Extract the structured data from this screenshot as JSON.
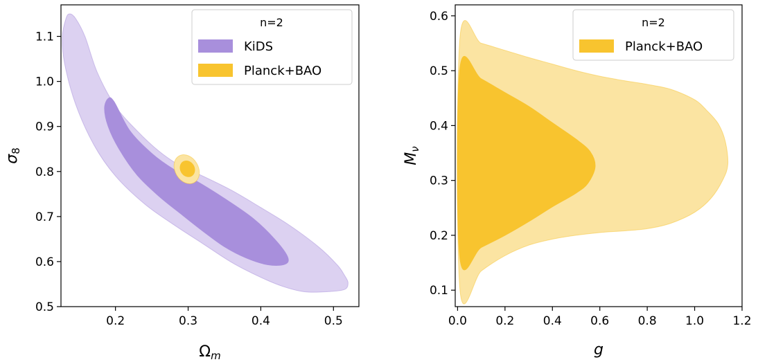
{
  "chart_data": [
    {
      "type": "contour",
      "legend_title": "n=2",
      "xlabel": "Ω",
      "xlabel_sub": "m",
      "ylabel": "σ",
      "ylabel_sub": "8",
      "xlim": [
        0.125,
        0.535
      ],
      "ylim": [
        0.5,
        1.17
      ],
      "xticks": [
        0.2,
        0.3,
        0.4,
        0.5
      ],
      "xtick_labels": [
        "0.2",
        "0.3",
        "0.4",
        "0.5"
      ],
      "yticks": [
        0.5,
        0.6,
        0.7,
        0.8,
        0.9,
        1.0,
        1.1
      ],
      "ytick_labels": [
        "0.5",
        "0.6",
        "0.7",
        "0.8",
        "0.9",
        "1.0",
        "1.1"
      ],
      "legend": [
        "KiDS",
        "Planck+BAO"
      ],
      "legend_location": "upper right",
      "series": [
        {
          "name": "KiDS",
          "color": "#a88fdc",
          "outer_color": "#dcd1f1",
          "outer_contour": [
            [
              0.127,
              1.1
            ],
            [
              0.132,
              1.14
            ],
            [
              0.137,
              1.15
            ],
            [
              0.145,
              1.14
            ],
            [
              0.158,
              1.1
            ],
            [
              0.175,
              1.02
            ],
            [
              0.2,
              0.945
            ],
            [
              0.23,
              0.89
            ],
            [
              0.26,
              0.845
            ],
            [
              0.29,
              0.812
            ],
            [
              0.32,
              0.79
            ],
            [
              0.36,
              0.758
            ],
            [
              0.4,
              0.72
            ],
            [
              0.44,
              0.68
            ],
            [
              0.48,
              0.632
            ],
            [
              0.505,
              0.593
            ],
            [
              0.515,
              0.57
            ],
            [
              0.52,
              0.553
            ],
            [
              0.515,
              0.538
            ],
            [
              0.49,
              0.533
            ],
            [
              0.46,
              0.533
            ],
            [
              0.43,
              0.545
            ],
            [
              0.4,
              0.565
            ],
            [
              0.36,
              0.598
            ],
            [
              0.32,
              0.64
            ],
            [
              0.28,
              0.682
            ],
            [
              0.24,
              0.728
            ],
            [
              0.2,
              0.79
            ],
            [
              0.17,
              0.86
            ],
            [
              0.145,
              0.95
            ],
            [
              0.13,
              1.04
            ]
          ],
          "inner_contour": [
            [
              0.185,
              0.94
            ],
            [
              0.19,
              0.962
            ],
            [
              0.198,
              0.955
            ],
            [
              0.22,
              0.89
            ],
            [
              0.25,
              0.84
            ],
            [
              0.28,
              0.805
            ],
            [
              0.31,
              0.78
            ],
            [
              0.35,
              0.74
            ],
            [
              0.39,
              0.695
            ],
            [
              0.42,
              0.648
            ],
            [
              0.437,
              0.61
            ],
            [
              0.433,
              0.594
            ],
            [
              0.41,
              0.593
            ],
            [
              0.38,
              0.608
            ],
            [
              0.35,
              0.633
            ],
            [
              0.32,
              0.668
            ],
            [
              0.29,
              0.706
            ],
            [
              0.26,
              0.745
            ],
            [
              0.23,
              0.792
            ],
            [
              0.205,
              0.85
            ],
            [
              0.19,
              0.9
            ]
          ]
        },
        {
          "name": "Planck+BAO",
          "color": "#f8c42f",
          "outer_color": "#fbe4a2",
          "ellipse_1sigma": {
            "cx": 0.299,
            "cy": 0.806,
            "rx": 0.01,
            "ry": 0.019
          },
          "ellipse_2sigma": {
            "cx": 0.298,
            "cy": 0.805,
            "rx": 0.016,
            "ry": 0.034
          }
        }
      ]
    },
    {
      "type": "contour",
      "legend_title": "n=2",
      "xlabel": "g",
      "ylabel": "M",
      "ylabel_sub": "ν",
      "xlim": [
        -0.01,
        1.2
      ],
      "ylim": [
        0.07,
        0.62
      ],
      "xticks": [
        0.0,
        0.2,
        0.4,
        0.6,
        0.8,
        1.0,
        1.2
      ],
      "xtick_labels": [
        "0.0",
        "0.2",
        "0.4",
        "0.6",
        "0.8",
        "1.0",
        "1.2"
      ],
      "yticks": [
        0.1,
        0.2,
        0.3,
        0.4,
        0.5,
        0.6
      ],
      "ytick_labels": [
        "0.1",
        "0.2",
        "0.3",
        "0.4",
        "0.5",
        "0.6"
      ],
      "legend": [
        "Planck+BAO"
      ],
      "legend_location": "upper right",
      "series": [
        {
          "name": "Planck+BAO",
          "color": "#f8c42f",
          "outer_color": "#fbe4a2",
          "outer_contour": [
            [
              0.01,
              0.101
            ],
            [
              0.1,
              0.135
            ],
            [
              0.2,
              0.163
            ],
            [
              0.3,
              0.182
            ],
            [
              0.4,
              0.193
            ],
            [
              0.5,
              0.2
            ],
            [
              0.6,
              0.205
            ],
            [
              0.7,
              0.208
            ],
            [
              0.8,
              0.212
            ],
            [
              0.9,
              0.222
            ],
            [
              1.0,
              0.242
            ],
            [
              1.07,
              0.268
            ],
            [
              1.12,
              0.302
            ],
            [
              1.14,
              0.33
            ],
            [
              1.13,
              0.37
            ],
            [
              1.1,
              0.403
            ],
            [
              1.05,
              0.428
            ],
            [
              1.0,
              0.447
            ],
            [
              0.9,
              0.466
            ],
            [
              0.8,
              0.475
            ],
            [
              0.7,
              0.482
            ],
            [
              0.6,
              0.49
            ],
            [
              0.5,
              0.5
            ],
            [
              0.4,
              0.512
            ],
            [
              0.3,
              0.524
            ],
            [
              0.2,
              0.537
            ],
            [
              0.1,
              0.55
            ],
            [
              0.01,
              0.56
            ]
          ],
          "inner_contour": [
            [
              0.01,
              0.158
            ],
            [
              0.1,
              0.178
            ],
            [
              0.2,
              0.2
            ],
            [
              0.3,
              0.225
            ],
            [
              0.4,
              0.252
            ],
            [
              0.5,
              0.277
            ],
            [
              0.55,
              0.295
            ],
            [
              0.58,
              0.325
            ],
            [
              0.56,
              0.352
            ],
            [
              0.5,
              0.375
            ],
            [
              0.4,
              0.405
            ],
            [
              0.3,
              0.435
            ],
            [
              0.2,
              0.46
            ],
            [
              0.1,
              0.485
            ],
            [
              0.01,
              0.505
            ]
          ]
        }
      ]
    }
  ]
}
